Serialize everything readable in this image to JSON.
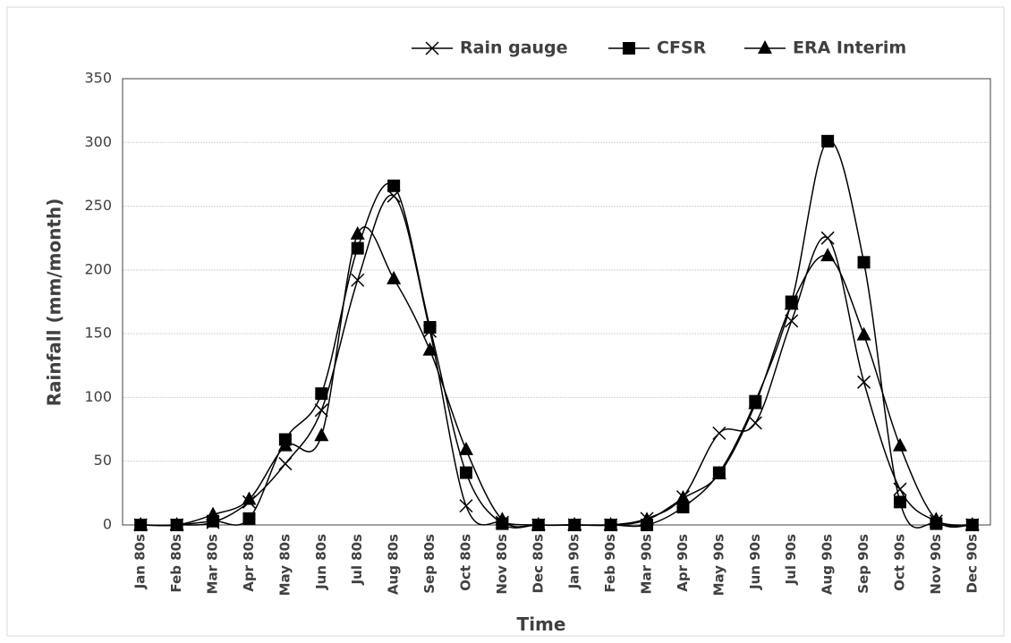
{
  "chart_data": {
    "type": "line",
    "categories": [
      "Jan 80s",
      "Feb 80s",
      "Mar 80s",
      "Apr 80s",
      "May 80s",
      "Jun 80s",
      "Jul 80s",
      "Aug 80s",
      "Sep 80s",
      "Oct 80s",
      "Nov 80s",
      "Dec 80s",
      "Jan 90s",
      "Feb 90s",
      "Mar 90s",
      "Apr 90s",
      "May 90s",
      "Jun 90s",
      "Jul 90s",
      "Aug 90s",
      "Sep 90s",
      "Oct 90s",
      "Nov 90s",
      "Dec 90s"
    ],
    "series": [
      {
        "name": "Rain gauge",
        "color": "#000000",
        "marker": "x",
        "values": [
          0,
          0,
          2,
          18,
          48,
          90,
          192,
          258,
          152,
          15,
          2,
          0,
          0,
          0,
          5,
          22,
          72,
          80,
          160,
          225,
          112,
          28,
          3,
          0
        ]
      },
      {
        "name": "CFSR",
        "color": "#000000",
        "marker": "square",
        "values": [
          0,
          0,
          3,
          5,
          67,
          103,
          217,
          266,
          155,
          41,
          1,
          0,
          0,
          0,
          0,
          14,
          41,
          97,
          175,
          301,
          206,
          18,
          1,
          0
        ]
      },
      {
        "name": "ERA Interim",
        "color": "#000000",
        "marker": "triangle",
        "values": [
          0,
          0,
          8,
          20,
          62,
          70,
          228,
          193,
          137,
          59,
          4,
          0,
          0,
          0,
          4,
          21,
          40,
          95,
          173,
          211,
          149,
          62,
          4,
          0
        ]
      }
    ],
    "x_label": "Time",
    "y_label": "Rainfall  (mm/month)",
    "ylim": [
      0,
      350
    ],
    "yticks": [
      0,
      50,
      100,
      150,
      200,
      250,
      300,
      350
    ],
    "grid": true,
    "legend": "top"
  }
}
